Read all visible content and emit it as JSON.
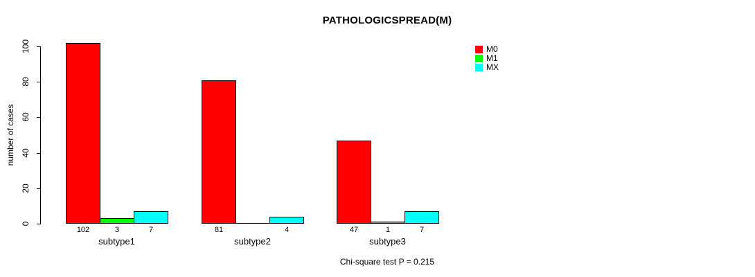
{
  "chart_data": {
    "type": "bar",
    "title": "PATHOLOGICSPREAD(M)",
    "ylabel": "number of cases",
    "xlabel": "",
    "categories": [
      "subtype1",
      "subtype2",
      "subtype3"
    ],
    "series": [
      {
        "name": "M0",
        "color": "#ff0000",
        "values": [
          102,
          81,
          47
        ]
      },
      {
        "name": "M1",
        "color": "#00ff00",
        "values": [
          3,
          0,
          1
        ]
      },
      {
        "name": "MX",
        "color": "#00ffff",
        "values": [
          7,
          4,
          7
        ]
      }
    ],
    "ylim": [
      0,
      100
    ],
    "yticks": [
      0,
      20,
      40,
      60,
      80,
      100
    ],
    "grid": false,
    "legend_position": "top-right",
    "bar_value_labels": {
      "show": true,
      "hide_zero": true
    },
    "annotation": "Chi-square test P = 0.215"
  }
}
